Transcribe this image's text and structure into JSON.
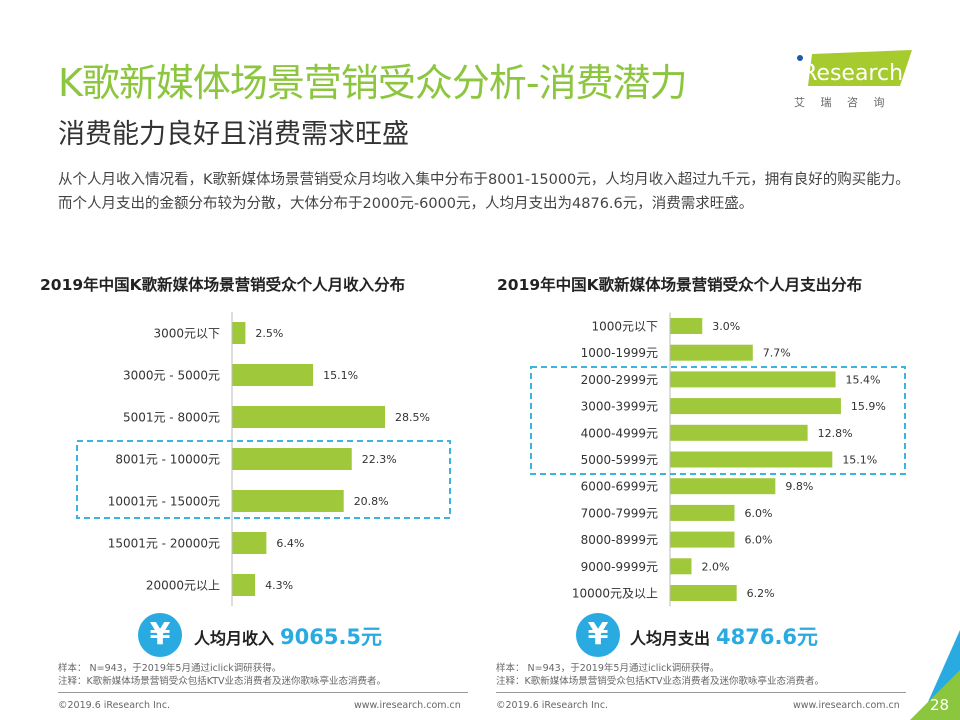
{
  "header": {
    "title": "K歌新媒体场景营销受众分析-消费潜力",
    "subtitle": "消费能力良好且消费需求旺盛",
    "description": "从个人月收入情况看，K歌新媒体场景营销受众月均收入集中分布于8001-15000元，人均月收入超过九千元，拥有良好的购买能力。而个人月支出的金额分布较为分散，大体分布于2000元-6000元，人均月支出为4876.6元，消费需求旺盛。",
    "logo_text": "iResearch",
    "logo_sub": "艾 瑞 咨 询"
  },
  "colors": {
    "title": "#8cc63f",
    "bar": "#9fc83a",
    "accent": "#29abe2",
    "highlight_box": "#3bb4e0"
  },
  "chart_data": [
    {
      "type": "bar",
      "orientation": "horizontal",
      "title": "2019年中国K歌新媒体场景营销受众个人月收入分布",
      "categories": [
        "3000元以下",
        "3000元 - 5000元",
        "5001元 - 8000元",
        "8001元 - 10000元",
        "10001元 - 15000元",
        "15001元 - 20000元",
        "20000元以上"
      ],
      "values": [
        2.5,
        15.1,
        28.5,
        22.3,
        20.8,
        6.4,
        4.3
      ],
      "value_labels": [
        "2.5%",
        "15.1%",
        "28.5%",
        "22.3%",
        "20.8%",
        "6.4%",
        "4.3%"
      ],
      "highlighted": [
        "8001元 - 10000元",
        "10001元 - 15000元"
      ],
      "unit": "%"
    },
    {
      "type": "bar",
      "orientation": "horizontal",
      "title": "2019年中国K歌新媒体场景营销受众个人月支出分布",
      "categories": [
        "1000元以下",
        "1000-1999元",
        "2000-2999元",
        "3000-3999元",
        "4000-4999元",
        "5000-5999元",
        "6000-6999元",
        "7000-7999元",
        "8000-8999元",
        "9000-9999元",
        "10000元及以上"
      ],
      "values": [
        3.0,
        7.7,
        15.4,
        15.9,
        12.8,
        15.1,
        9.8,
        6.0,
        6.0,
        2.0,
        6.2
      ],
      "value_labels": [
        "3.0%",
        "7.7%",
        "15.4%",
        "15.9%",
        "12.8%",
        "15.1%",
        "9.8%",
        "6.0%",
        "6.0%",
        "2.0%",
        "6.2%"
      ],
      "highlighted": [
        "2000-2999元",
        "3000-3999元",
        "4000-4999元",
        "5000-5999元"
      ],
      "unit": "%"
    }
  ],
  "summary": {
    "income": {
      "icon": "yen-icon",
      "symbol": "¥",
      "label": "人均月收入",
      "value": "9065.5元"
    },
    "expense": {
      "icon": "yen-icon",
      "symbol": "¥",
      "label": "人均月支出",
      "value": "4876.6元"
    }
  },
  "notes": {
    "sample": "样本： N=943，于2019年5月通过iclick调研获得。",
    "note": "注释：K歌新媒体场景营销受众包括KTV业态消费者及迷你歌咏亭业态消费者。"
  },
  "footer": {
    "copyright": "©2019.6 iResearch Inc.",
    "website": "www.iresearch.com.cn",
    "page": "28"
  }
}
